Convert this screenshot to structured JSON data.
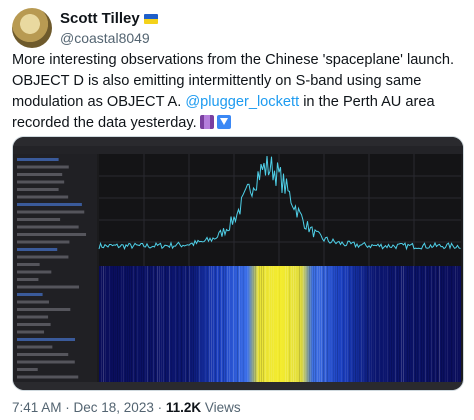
{
  "author": {
    "name": "Scott Tilley",
    "handle": "@coastal8049"
  },
  "tweet": {
    "text_before": "More interesting observations from the Chinese 'spaceplane' launch. OBJECT D is also emitting intermittently on S-band using same modulation as OBJECT A.",
    "mention": "@plugger_lockett",
    "text_after": "in the Perth AU area recorded the data yesterday."
  },
  "meta": {
    "time_date": "7:41 AM · Dec 18, 2023 ·",
    "views_count": "11.2K",
    "views_label": "Views"
  }
}
